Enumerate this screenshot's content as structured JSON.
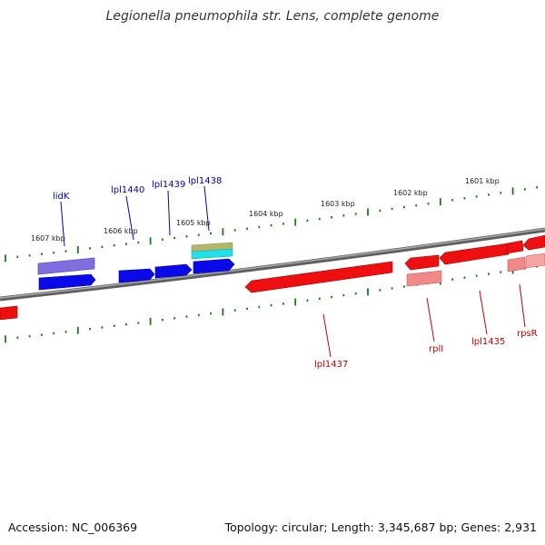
{
  "title": "Legionella pneumophila str. Lens, complete genome",
  "footer": {
    "accession": "Accession: NC_006369",
    "summary": "Topology: circular; Length: 3,345,687 bp; Genes: 2,931"
  },
  "colors": {
    "backbone": "#808080",
    "tick": "#1a7a1a",
    "plus_gene": "#1010ee",
    "minus_gene": "#ee1010",
    "plus_label": "#0000bb",
    "minus_label": "#cc0000"
  },
  "ruler_labels": [
    "1607 kbp",
    "1606 kbp",
    "1605 kbp",
    "1604 kbp",
    "1603 kbp",
    "1602 kbp",
    "1601 kbp"
  ],
  "genes_plus": [
    {
      "name": "lidK",
      "label": "lidK"
    },
    {
      "name": "lpl1440",
      "label": "lpl1440"
    },
    {
      "name": "lpl1439",
      "label": "lpl1439"
    },
    {
      "name": "lpl1438",
      "label": "lpl1438"
    }
  ],
  "genes_minus": [
    {
      "name": "lpl1437",
      "label": "lpl1437"
    },
    {
      "name": "rplI",
      "label": "rplI"
    },
    {
      "name": "lpl1435",
      "label": "lpl1435"
    },
    {
      "name": "rpsR",
      "label": "rpsR"
    }
  ]
}
